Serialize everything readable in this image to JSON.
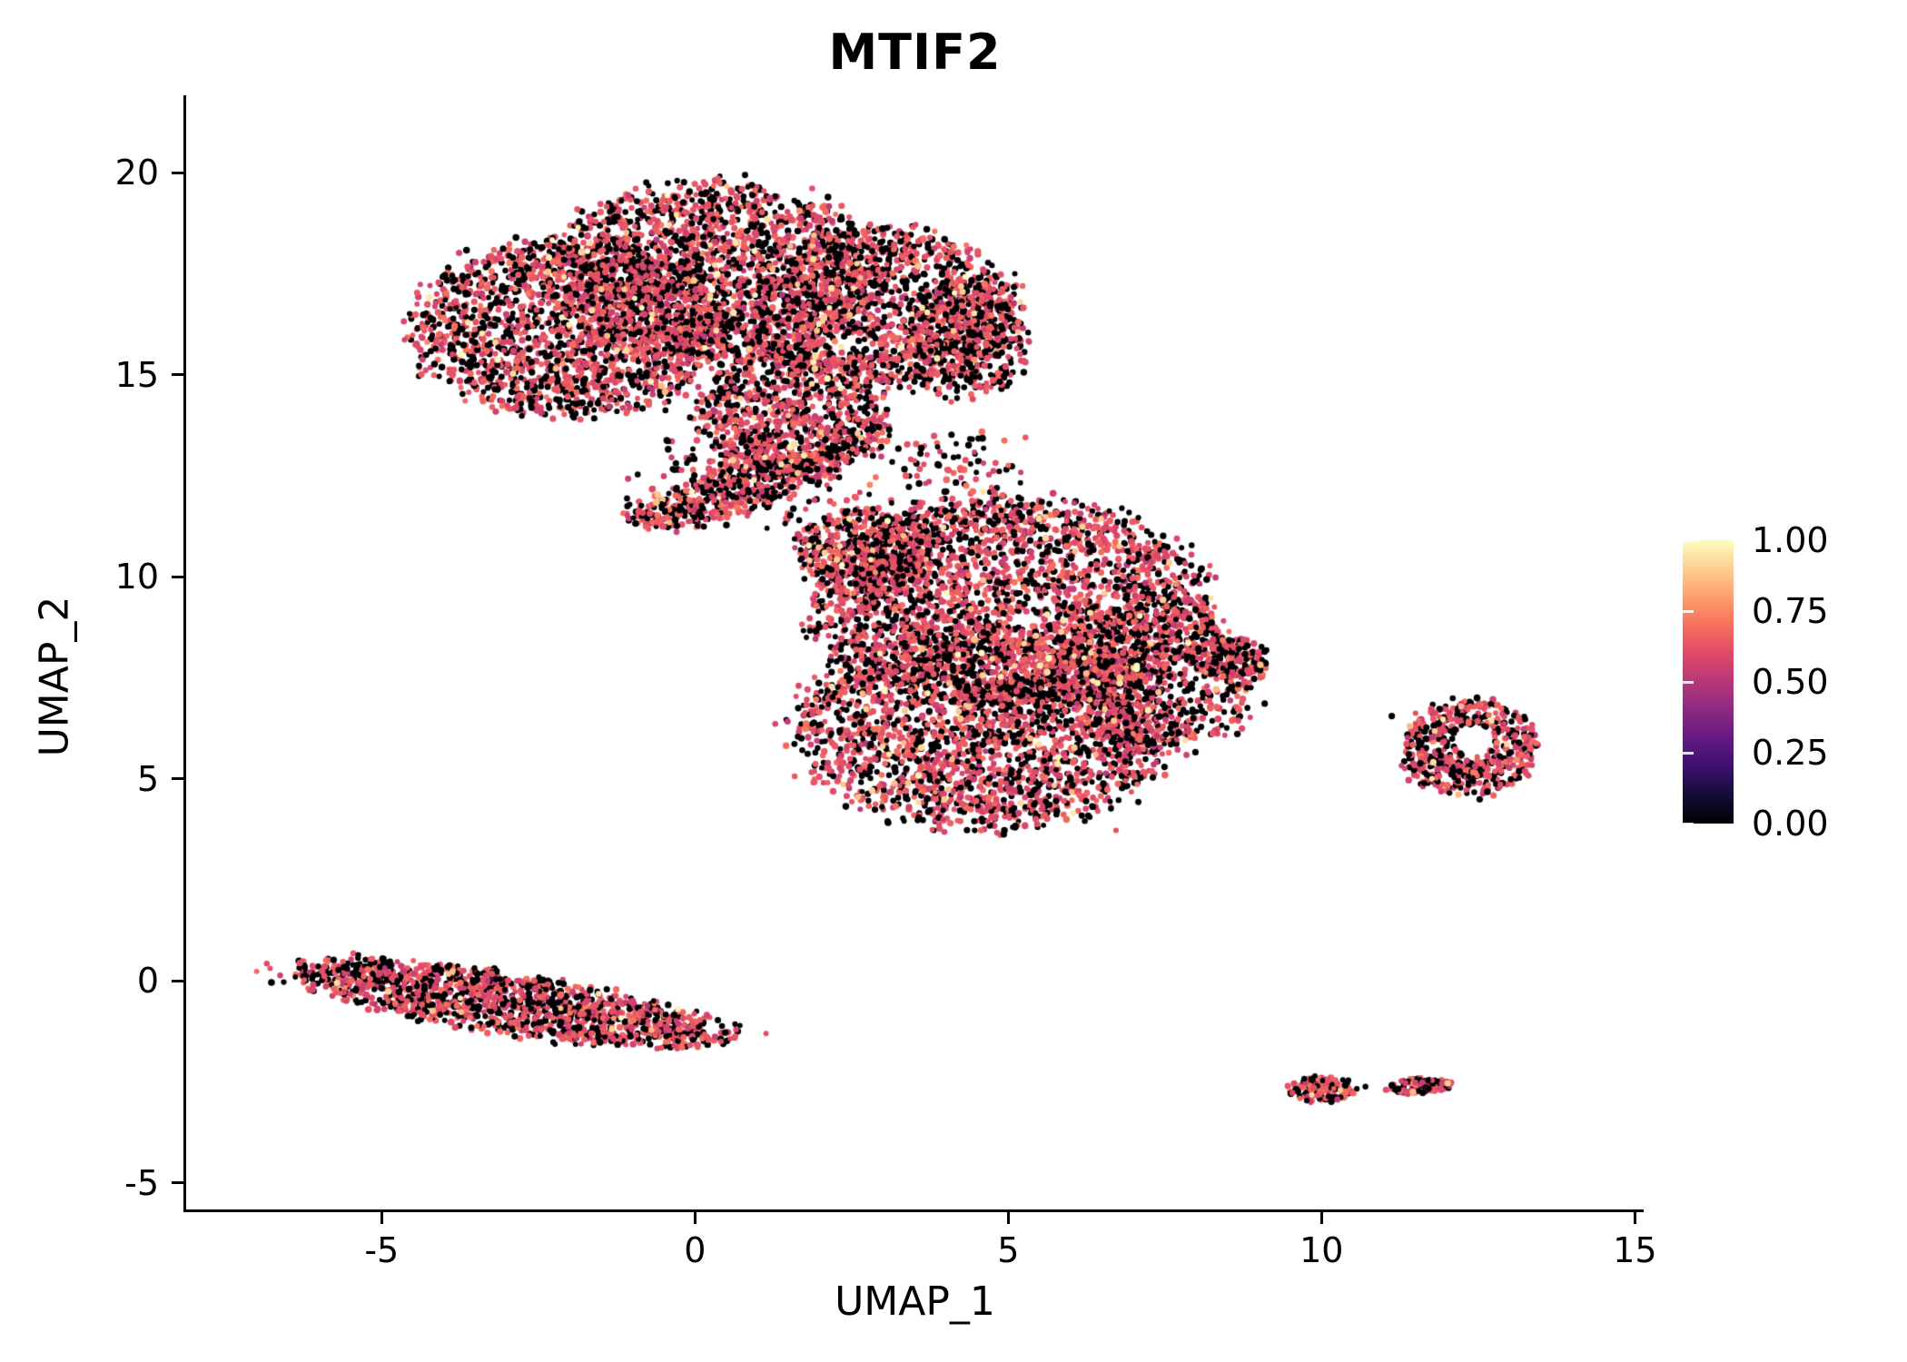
{
  "seed": 13,
  "chart_data": {
    "type": "scatter",
    "title": "MTIF2",
    "xlabel": "UMAP_1",
    "ylabel": "UMAP_2",
    "xlim": [
      -8.12,
      15.14
    ],
    "ylim": [
      -5.66,
      21.91
    ],
    "xticks": [
      -5,
      0,
      5,
      10,
      15
    ],
    "yticks": [
      -5,
      0,
      5,
      10,
      15,
      20
    ],
    "grid": false,
    "background": "#ffffff",
    "text_color": "#000000",
    "point_radius_px": 3.3,
    "value_distribution": {
      "p_zero": 0.42,
      "mid_mean": 0.62,
      "mid_sd": 0.05,
      "p_high": 0.015,
      "high_range": [
        0.85,
        1.0
      ]
    },
    "colormap": {
      "name": "magma",
      "stops": [
        {
          "t": 0.0,
          "color": "#000004"
        },
        {
          "t": 0.1,
          "color": "#140e36"
        },
        {
          "t": 0.2,
          "color": "#3b0f70"
        },
        {
          "t": 0.3,
          "color": "#641a80"
        },
        {
          "t": 0.4,
          "color": "#8c2981"
        },
        {
          "t": 0.5,
          "color": "#b73779"
        },
        {
          "t": 0.6,
          "color": "#de4968"
        },
        {
          "t": 0.7,
          "color": "#f7705c"
        },
        {
          "t": 0.8,
          "color": "#fe9f6d"
        },
        {
          "t": 0.9,
          "color": "#fece91"
        },
        {
          "t": 1.0,
          "color": "#fcfdbf"
        }
      ]
    },
    "colorbar": {
      "position": "right",
      "min": 0,
      "max": 1,
      "labels": [
        "1.00",
        "0.75",
        "0.50",
        "0.25",
        "0.00"
      ]
    },
    "clusters": [
      {
        "name": "upper-blob-left",
        "cx": -2.0,
        "cy": 16.2,
        "rx": 2.5,
        "ry": 2.15,
        "angle_deg": 0,
        "count": 1900
      },
      {
        "name": "upper-blob-mid",
        "cx": 0.3,
        "cy": 17.5,
        "rx": 2.6,
        "ry": 2.2,
        "angle_deg": 0,
        "count": 1950
      },
      {
        "name": "upper-blob-right",
        "cx": 3.0,
        "cy": 16.6,
        "rx": 2.1,
        "ry": 1.95,
        "angle_deg": 0,
        "count": 1300
      },
      {
        "name": "upper-blob-right-tip",
        "cx": 4.35,
        "cy": 15.9,
        "rx": 0.95,
        "ry": 1.5,
        "angle_deg": 0,
        "count": 430
      },
      {
        "name": "upper-blob-lower-lobe",
        "cx": 1.6,
        "cy": 14.0,
        "rx": 1.55,
        "ry": 1.5,
        "angle_deg": 0,
        "count": 850
      },
      {
        "name": "bridge-strip",
        "cx": 0.55,
        "cy": 12.1,
        "rx": 1.75,
        "ry": 0.55,
        "angle_deg": 28,
        "count": 430
      },
      {
        "name": "center-blob-top",
        "cx": 5.0,
        "cy": 9.3,
        "rx": 3.1,
        "ry": 2.6,
        "angle_deg": 0,
        "count": 2600
      },
      {
        "name": "center-blob-bottom",
        "cx": 4.6,
        "cy": 6.2,
        "rx": 2.9,
        "ry": 2.4,
        "angle_deg": 0,
        "count": 2300
      },
      {
        "name": "center-blob-right",
        "cx": 7.3,
        "cy": 7.5,
        "rx": 1.7,
        "ry": 1.8,
        "angle_deg": 0,
        "count": 900
      },
      {
        "name": "center-blob-right-tip",
        "cx": 8.5,
        "cy": 8.0,
        "rx": 0.65,
        "ry": 0.5,
        "angle_deg": 0,
        "count": 140
      },
      {
        "name": "center-blob-upper-left",
        "cx": 2.7,
        "cy": 10.6,
        "rx": 1.05,
        "ry": 1.05,
        "angle_deg": 0,
        "count": 480
      },
      {
        "name": "lower-left-streak",
        "cx": -3.0,
        "cy": -0.55,
        "rx": 3.6,
        "ry": 0.7,
        "angle_deg": -14,
        "count": 1450
      },
      {
        "name": "right-island",
        "cx": 12.35,
        "cy": 5.75,
        "rx": 1.05,
        "ry": 1.2,
        "angle_deg": -20,
        "count": 520,
        "hole": {
          "cx": 12.45,
          "cy": 5.95,
          "rx": 0.32,
          "ry": 0.38
        }
      },
      {
        "name": "bottom-island-left",
        "cx": 10.0,
        "cy": -2.68,
        "rx": 0.55,
        "ry": 0.33,
        "angle_deg": 0,
        "count": 130
      },
      {
        "name": "bottom-island-right",
        "cx": 11.55,
        "cy": -2.6,
        "rx": 0.5,
        "ry": 0.18,
        "angle_deg": 5,
        "count": 110
      }
    ],
    "sparse_regions": [
      {
        "x0": 1.0,
        "x1": 5.3,
        "y0": 10.9,
        "y1": 13.6,
        "count": 240
      },
      {
        "x0": -0.5,
        "x1": 2.5,
        "y0": 12.6,
        "y1": 13.4,
        "count": 80
      },
      {
        "x0": -1.2,
        "x1": 1.2,
        "y0": 11.2,
        "y1": 12.9,
        "count": 60
      }
    ],
    "extra_points": [
      [
        6.72,
        3.72,
        0.62
      ],
      [
        6.3,
        4.05,
        0
      ],
      [
        10.7,
        -2.62,
        0
      ],
      [
        11.12,
        6.55,
        0
      ],
      [
        11.5,
        6.62,
        0.62
      ],
      [
        9.0,
        8.15,
        0.62
      ],
      [
        1.15,
        11.2,
        0
      ],
      [
        2.6,
        13.9,
        0.62
      ]
    ]
  }
}
